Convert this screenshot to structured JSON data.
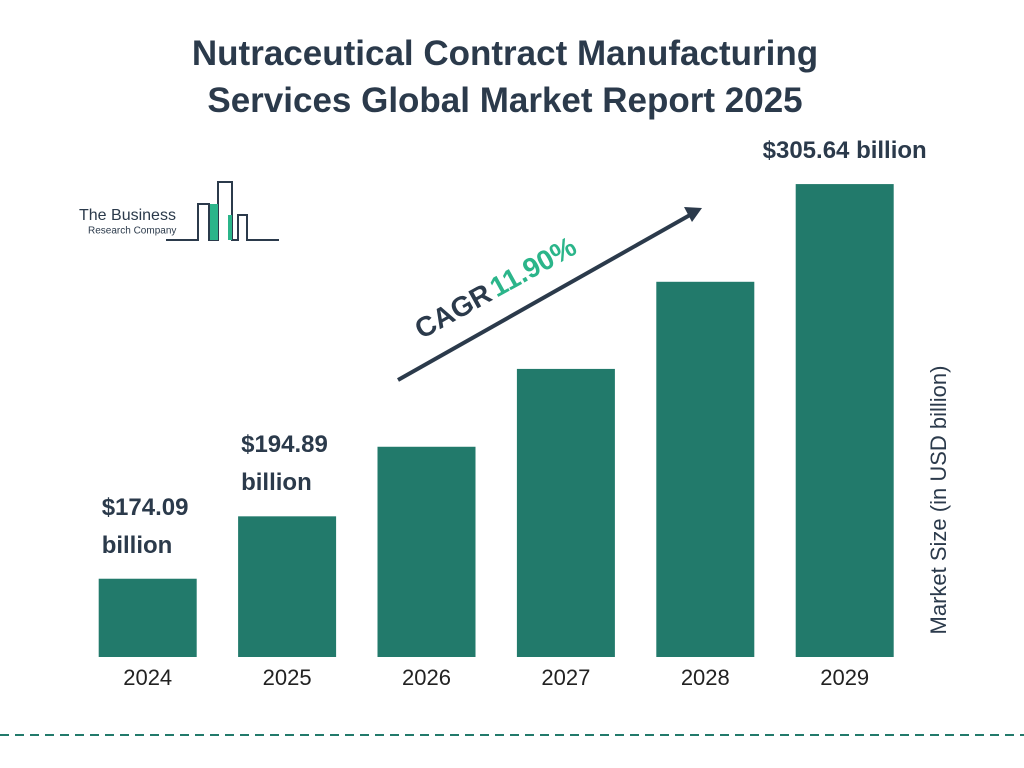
{
  "chart_data": {
    "type": "bar",
    "title": "Nutraceutical Contract Manufacturing Services Global Market Report 2025",
    "categories": [
      "2024",
      "2025",
      "2026",
      "2027",
      "2028",
      "2029"
    ],
    "values": [
      174.09,
      194.89,
      218.08,
      244.03,
      273.07,
      305.64
    ],
    "value_labels": [
      "$174.09 billion",
      "$194.89 billion",
      null,
      null,
      null,
      "$305.64 billion"
    ],
    "color": "#227a6b",
    "ylim": [
      148,
      320
    ],
    "y_axis_label": "Market Size (in USD billion)",
    "annotation": {
      "label": "CAGR",
      "value": "11.90%"
    },
    "logo": {
      "line1": "The Business",
      "line2": "Research Company"
    }
  }
}
